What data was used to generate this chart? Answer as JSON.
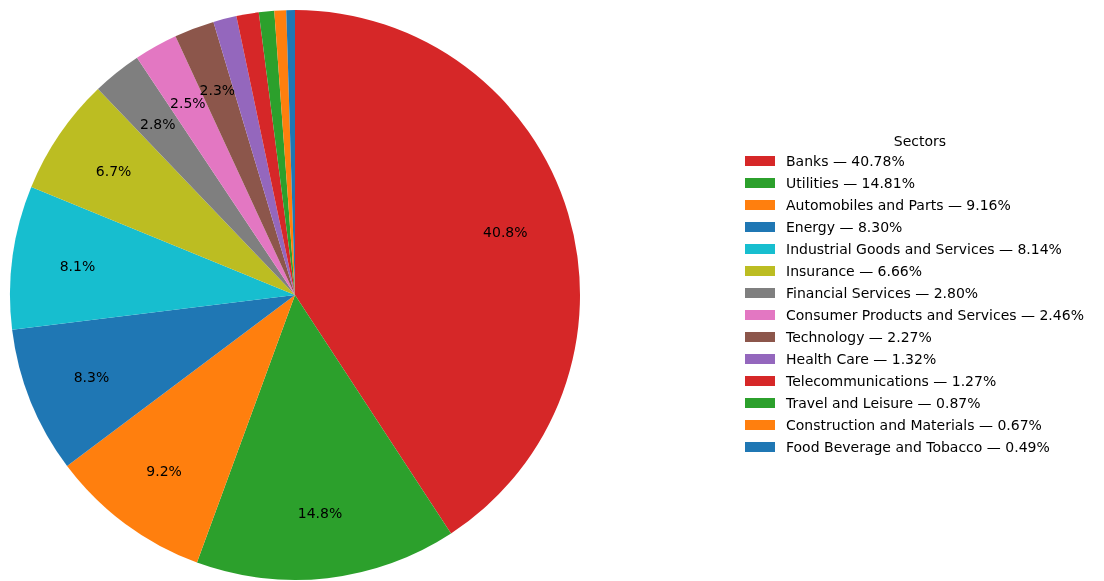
{
  "chart_data": {
    "type": "pie",
    "legend_title": "Sectors",
    "legend": "right",
    "categories": [
      "Banks — 40.78%",
      "Utilities — 14.81%",
      "Automobiles and Parts — 9.16%",
      "Energy — 8.30%",
      "Industrial Goods and Services — 8.14%",
      "Insurance — 6.66%",
      "Financial Services — 2.80%",
      "Consumer Products and Services — 2.46%",
      "Technology — 2.27%",
      "Health Care — 1.32%",
      "Telecommunications — 1.27%",
      "Travel and Leisure — 0.87%",
      "Construction and Materials — 0.67%",
      "Food Beverage and Tobacco — 0.49%"
    ],
    "values": [
      40.78,
      14.81,
      9.16,
      8.3,
      8.14,
      6.66,
      2.8,
      2.46,
      2.27,
      1.32,
      1.27,
      0.87,
      0.67,
      0.49
    ],
    "value_labels": [
      "40.8%",
      "14.8%",
      "9.2%",
      "8.3%",
      "8.1%",
      "6.7%",
      "2.8%",
      "2.5%",
      "2.3%",
      null,
      null,
      null,
      null,
      null
    ],
    "colors": [
      "#d62728",
      "#2ca02c",
      "#ff7f0e",
      "#1f77b4",
      "#17becf",
      "#bcbd22",
      "#7f7f7f",
      "#e377c2",
      "#8c564b",
      "#9467bd",
      "#d62728",
      "#2ca02c",
      "#ff7f0e",
      "#1f77b4"
    ]
  }
}
